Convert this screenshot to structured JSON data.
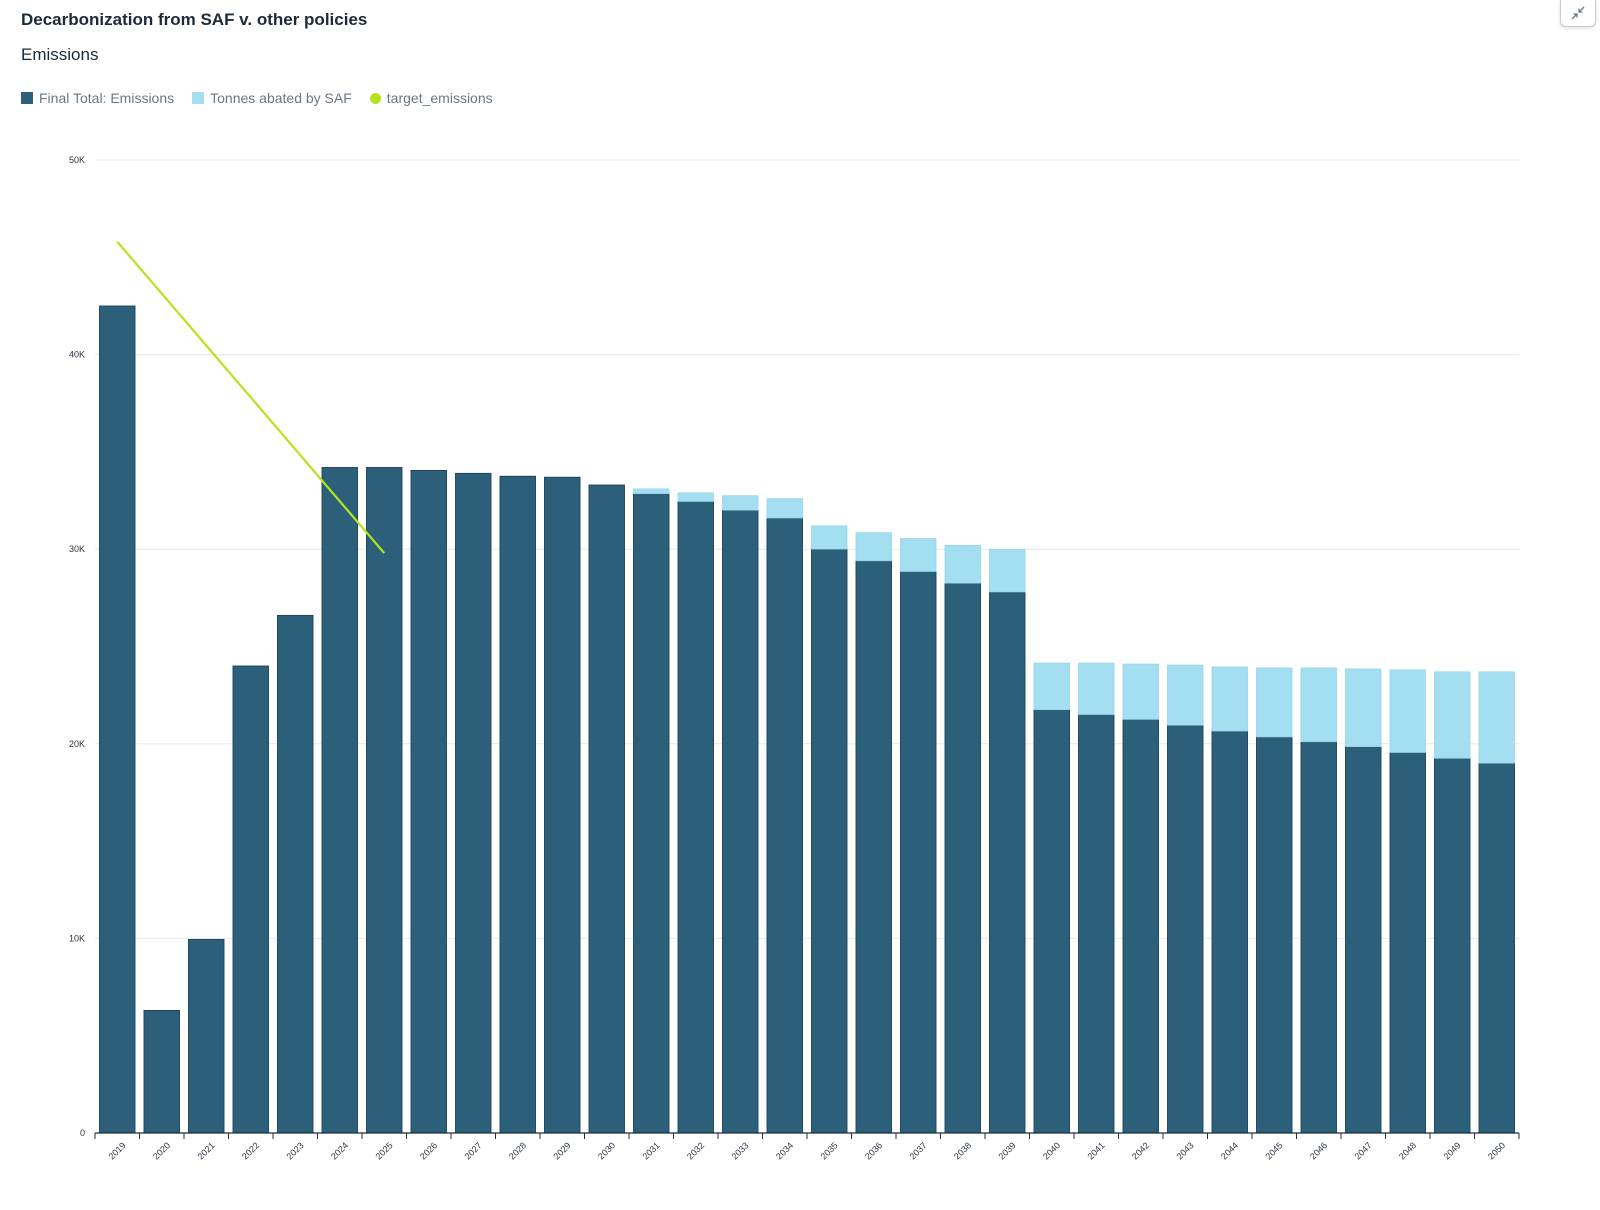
{
  "title": "Decarbonization from SAF v. other policies",
  "subtitle": "Emissions",
  "corner_icon": "collapse-icon",
  "colors": {
    "emissions": "#2b5f7a",
    "saf": "#a3dff0",
    "target": "#b5e31c",
    "grid": "#e6e9ec",
    "axis": "#1f2d3d"
  },
  "legend": [
    {
      "label": "Final Total: Emissions",
      "shape": "square",
      "color": "#2b5f7a"
    },
    {
      "label": "Tonnes abated by SAF",
      "shape": "square",
      "color": "#a3dff0"
    },
    {
      "label": "target_emissions",
      "shape": "dot",
      "color": "#b5e31c"
    }
  ],
  "chart_data": {
    "type": "bar",
    "stacked": true,
    "title": "Decarbonization from SAF v. other policies",
    "subtitle": "Emissions",
    "xlabel": "",
    "ylabel": "",
    "ylim": [
      0,
      50000
    ],
    "yticks": [
      0,
      10000,
      20000,
      30000,
      40000,
      50000
    ],
    "ytick_labels": [
      "0",
      "10K",
      "20K",
      "30K",
      "40K",
      "50K"
    ],
    "grid": true,
    "legend_position": "top-left",
    "categories": [
      "2019",
      "2020",
      "2021",
      "2022",
      "2023",
      "2024",
      "2025",
      "2026",
      "2027",
      "2028",
      "2029",
      "2030",
      "2031",
      "2032",
      "2033",
      "2034",
      "2035",
      "2036",
      "2037",
      "2038",
      "2039",
      "2040",
      "2041",
      "2042",
      "2043",
      "2044",
      "2045",
      "2046",
      "2047",
      "2048",
      "2049",
      "2050"
    ],
    "series": [
      {
        "name": "Final Total: Emissions",
        "type": "bar",
        "values": [
          42500,
          6300,
          9950,
          24000,
          26600,
          34200,
          34200,
          34050,
          33900,
          33750,
          33700,
          33300,
          32850,
          32450,
          32000,
          31600,
          30000,
          29400,
          28850,
          28250,
          27800,
          21750,
          21500,
          21250,
          20950,
          20650,
          20350,
          20100,
          19850,
          19550,
          19250,
          19000
        ]
      },
      {
        "name": "Tonnes abated by SAF",
        "type": "bar",
        "values": [
          0,
          0,
          0,
          0,
          0,
          0,
          0,
          0,
          0,
          0,
          0,
          0,
          250,
          450,
          750,
          1000,
          1200,
          1450,
          1700,
          1950,
          2200,
          2400,
          2650,
          2850,
          3100,
          3300,
          3550,
          3800,
          4000,
          4250,
          4450,
          4700
        ]
      },
      {
        "name": "target_emissions",
        "type": "line",
        "x": [
          "2019",
          "2025"
        ],
        "values": [
          45800,
          29800
        ]
      }
    ]
  }
}
